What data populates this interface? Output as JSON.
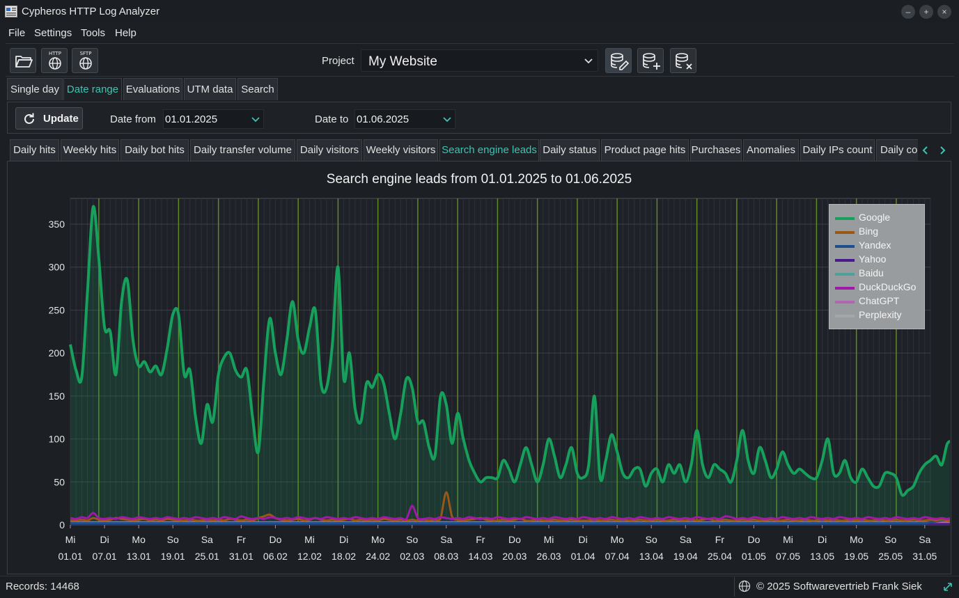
{
  "window": {
    "title": "Cypheros HTTP Log Analyzer",
    "controls": [
      "–",
      "+",
      "×"
    ]
  },
  "menu": [
    "File",
    "Settings",
    "Tools",
    "Help"
  ],
  "toolbar": {
    "open_icon": "folder-open-icon",
    "http_label": "HTTP",
    "sftp_label": "SFTP",
    "project_label": "Project",
    "project_value": "My Website"
  },
  "main_tabs": [
    "Single day",
    "Date range",
    "Evaluations",
    "UTM data",
    "Search"
  ],
  "active_main_tab": "Date range",
  "date_row": {
    "update_label": "Update",
    "from_label": "Date from",
    "from_value": "01.01.2025",
    "to_label": "Date to",
    "to_value": "01.06.2025"
  },
  "chart_tabs": [
    "Daily hits",
    "Weekly hits",
    "Daily bot hits",
    "Daily transfer volume",
    "Daily visitors",
    "Weekly visitors",
    "Search engine leads",
    "Daily status",
    "Product page hits",
    "Purchases",
    "Anomalies",
    "Daily IPs count",
    "Daily co"
  ],
  "active_chart_tab": "Search engine leads",
  "status": {
    "records": "Records: 14468",
    "copyright": "© 2025 Softwarevertrieb Frank Siek"
  },
  "colors": {
    "accent": "#3fc3b0",
    "google": "#16a05c",
    "bing": "#9a5716",
    "yandex": "#1c4f8c",
    "yahoo": "#4a1a8a",
    "baidu": "#4fa098",
    "duckduckgo": "#a01aa8",
    "chatgpt": "#b066b0",
    "perplexity": "#a4a6a8",
    "grid_major": "#5f8a1f"
  },
  "chart_data": {
    "type": "line",
    "title": "Search engine leads from 01.01.2025 to 01.06.2025",
    "xlabel": "",
    "ylabel": "",
    "ylim": [
      0,
      380
    ],
    "yticks": [
      0,
      50,
      100,
      150,
      200,
      250,
      300,
      350
    ],
    "x_tick_days": [
      "Mi",
      "Di",
      "Mo",
      "So",
      "Sa",
      "Fr",
      "Do",
      "Mi",
      "Di",
      "Mo",
      "So",
      "Sa",
      "Fr",
      "Do",
      "Mi",
      "Di",
      "Mo",
      "So",
      "Sa",
      "Fr",
      "Do",
      "Mi",
      "Di",
      "Mo",
      "So",
      "Sa"
    ],
    "x_tick_dates": [
      "01.01",
      "07.01",
      "13.01",
      "19.01",
      "25.01",
      "31.01",
      "06.02",
      "12.02",
      "18.02",
      "24.02",
      "02.03",
      "08.03",
      "14.03",
      "20.03",
      "26.03",
      "01.04",
      "07.04",
      "13.04",
      "19.04",
      "25.04",
      "01.05",
      "07.05",
      "13.05",
      "19.05",
      "25.05",
      "31.05"
    ],
    "x_range_days": [
      0,
      151
    ],
    "legend_position": "top-right",
    "series": [
      {
        "name": "Google",
        "values": [
          210,
          180,
          172,
          270,
          370,
          310,
          230,
          225,
          175,
          260,
          285,
          215,
          185,
          190,
          178,
          185,
          175,
          205,
          245,
          245,
          175,
          180,
          125,
          95,
          140,
          120,
          175,
          195,
          200,
          180,
          172,
          180,
          125,
          85,
          170,
          240,
          200,
          175,
          215,
          260,
          215,
          200,
          230,
          250,
          165,
          160,
          210,
          300,
          170,
          200,
          135,
          120,
          165,
          160,
          175,
          165,
          130,
          100,
          130,
          170,
          160,
          120,
          120,
          90,
          80,
          150,
          140,
          95,
          130,
          100,
          75,
          60,
          50,
          55,
          55,
          55,
          75,
          65,
          50,
          70,
          90,
          70,
          50,
          70,
          100,
          80,
          55,
          70,
          90,
          60,
          55,
          70,
          150,
          55,
          75,
          105,
          85,
          60,
          55,
          65,
          65,
          45,
          60,
          65,
          50,
          70,
          60,
          70,
          50,
          70,
          110,
          70,
          55,
          70,
          65,
          60,
          50,
          75,
          110,
          75,
          60,
          90,
          75,
          55,
          65,
          85,
          70,
          60,
          65,
          60,
          55,
          55,
          75,
          100,
          60,
          60,
          75,
          55,
          50,
          65,
          55,
          45,
          45,
          60,
          60,
          55,
          35,
          40,
          45,
          60,
          70,
          75,
          80,
          70,
          95,
          90,
          45,
          75
        ],
        "note_values_estimated": ""
      },
      {
        "name": "Bing",
        "values": [
          5,
          5,
          6,
          5,
          8,
          6,
          5,
          6,
          8,
          7,
          6,
          5,
          6,
          7,
          5,
          6,
          5,
          7,
          6,
          5,
          5,
          6,
          5,
          5,
          6,
          5,
          6,
          5,
          7,
          6,
          5,
          6,
          5,
          8,
          10,
          12,
          8,
          6,
          5,
          6,
          7,
          5,
          6,
          8,
          6,
          5,
          6,
          5,
          6,
          7,
          5,
          6,
          5,
          6,
          5,
          7,
          6,
          5,
          6,
          5,
          6,
          5,
          6,
          5,
          6,
          8,
          38,
          10,
          6,
          5,
          6,
          7,
          8,
          6,
          5,
          5,
          6,
          5,
          6,
          7,
          5,
          5,
          6,
          5,
          5,
          6,
          5,
          5,
          6,
          5,
          5,
          5,
          6,
          5,
          5,
          6,
          5,
          6,
          5,
          5,
          6,
          5,
          5,
          6,
          5,
          5,
          6,
          5,
          5,
          6,
          5,
          6,
          7,
          5,
          5,
          6,
          5,
          5,
          6,
          5,
          6,
          5,
          5,
          6,
          5,
          5,
          6,
          5,
          5,
          6,
          5,
          5,
          6,
          5,
          6,
          5,
          5,
          6,
          5,
          6,
          5,
          5,
          6,
          5,
          5,
          6,
          5,
          5,
          6,
          5,
          5,
          6,
          5,
          6,
          5,
          6,
          7
        ]
      },
      {
        "name": "Yandex",
        "values": [
          2,
          2,
          2,
          2,
          2,
          2,
          2,
          2,
          2,
          2,
          2,
          2,
          2,
          2,
          2,
          2,
          2,
          2,
          2,
          2,
          2,
          2,
          2,
          2,
          2,
          2,
          2,
          2,
          2,
          2,
          2,
          2,
          2,
          2,
          2,
          2,
          2,
          2,
          2,
          2,
          2,
          2,
          2,
          2,
          2,
          2,
          2,
          2,
          2,
          2,
          2,
          2,
          2,
          2,
          2,
          2,
          2,
          2,
          2,
          2,
          2,
          2,
          2,
          2,
          2,
          2,
          2,
          2,
          2,
          2,
          2,
          2,
          2,
          2,
          2,
          2,
          2,
          2,
          2,
          2,
          2,
          2,
          2,
          2,
          2,
          2,
          2,
          2,
          2,
          2,
          2,
          2,
          2,
          2,
          2,
          2,
          2,
          2,
          2,
          2,
          2,
          2,
          2,
          2,
          2,
          2,
          2,
          2,
          2,
          2,
          2,
          2,
          2,
          2,
          2,
          2,
          2,
          2,
          2,
          2,
          2,
          2,
          2,
          2,
          2,
          2,
          2,
          2,
          2,
          2,
          2,
          2,
          2,
          2,
          2,
          2,
          2,
          2,
          2,
          2,
          2,
          2,
          2,
          2,
          2,
          2,
          2,
          2,
          2,
          2,
          2,
          3,
          4,
          5,
          5,
          4,
          3
        ]
      },
      {
        "name": "Yahoo",
        "values": [
          1,
          1,
          1,
          1,
          1,
          1,
          1,
          1,
          1,
          1,
          1,
          1,
          1,
          1,
          1,
          1,
          1,
          1,
          1,
          1,
          1,
          1,
          1,
          1,
          1,
          1,
          1,
          1,
          1,
          1,
          1,
          1,
          1,
          1,
          1,
          1,
          1,
          1,
          1,
          1,
          1,
          1,
          1,
          1,
          1,
          1,
          1,
          1,
          1,
          1,
          1,
          1,
          1,
          1,
          1,
          1,
          1,
          1,
          1,
          1,
          1,
          1,
          1,
          1,
          1,
          1,
          1,
          1,
          1,
          1,
          1,
          1,
          1,
          1,
          1,
          1,
          1,
          1,
          1,
          1,
          1,
          1,
          1,
          1,
          1,
          1,
          1,
          1,
          1,
          1,
          1,
          1,
          1,
          1,
          1,
          1,
          1,
          1,
          1,
          1,
          1,
          1,
          1,
          1,
          1,
          1,
          1,
          1,
          1,
          1,
          1,
          1,
          1,
          1,
          1,
          1,
          1,
          1,
          1,
          1,
          1,
          1,
          1,
          1,
          1,
          1,
          1,
          1,
          1,
          1,
          1,
          1,
          1,
          1,
          1,
          1,
          1,
          1,
          1,
          1,
          1,
          1,
          1,
          1,
          1,
          1,
          1,
          1,
          1,
          1,
          1,
          1,
          1,
          1,
          1,
          1,
          1
        ]
      },
      {
        "name": "Baidu",
        "values": [
          1,
          1,
          1,
          1,
          1,
          1,
          1,
          1,
          1,
          1,
          1,
          1,
          1,
          1,
          1,
          1,
          1,
          1,
          1,
          1,
          1,
          1,
          1,
          1,
          1,
          1,
          1,
          1,
          1,
          1,
          1,
          1,
          1,
          1,
          1,
          1,
          1,
          1,
          1,
          1,
          1,
          1,
          1,
          1,
          1,
          1,
          1,
          1,
          1,
          1,
          1,
          1,
          1,
          1,
          1,
          1,
          1,
          1,
          1,
          1,
          1,
          1,
          1,
          1,
          1,
          1,
          1,
          1,
          1,
          1,
          1,
          1,
          1,
          1,
          1,
          1,
          1,
          1,
          1,
          1,
          1,
          1,
          1,
          1,
          1,
          1,
          1,
          1,
          1,
          1,
          1,
          1,
          1,
          1,
          1,
          1,
          1,
          1,
          1,
          1,
          1,
          1,
          1,
          1,
          1,
          1,
          1,
          1,
          1,
          1,
          1,
          1,
          1,
          1,
          1,
          1,
          1,
          1,
          1,
          1,
          1,
          1,
          1,
          1,
          1,
          1,
          1,
          1,
          1,
          1,
          1,
          1,
          1,
          1,
          1,
          1,
          1,
          1,
          1,
          1,
          1,
          1,
          1,
          1,
          1,
          1,
          1,
          1,
          1,
          1,
          1,
          1,
          1,
          1,
          1,
          1,
          1
        ]
      },
      {
        "name": "DuckDuckGo",
        "values": [
          8,
          7,
          9,
          8,
          14,
          8,
          7,
          8,
          7,
          9,
          8,
          7,
          9,
          8,
          7,
          8,
          7,
          9,
          8,
          7,
          8,
          7,
          9,
          8,
          7,
          8,
          7,
          9,
          8,
          7,
          10,
          8,
          7,
          8,
          7,
          9,
          8,
          7,
          8,
          7,
          9,
          8,
          7,
          8,
          7,
          9,
          8,
          7,
          8,
          7,
          9,
          8,
          7,
          8,
          7,
          9,
          8,
          7,
          8,
          7,
          22,
          8,
          7,
          8,
          7,
          9,
          8,
          7,
          8,
          7,
          9,
          8,
          7,
          8,
          7,
          9,
          8,
          7,
          8,
          7,
          9,
          8,
          7,
          8,
          7,
          9,
          8,
          7,
          8,
          7,
          9,
          8,
          7,
          8,
          7,
          9,
          8,
          7,
          8,
          7,
          9,
          8,
          7,
          8,
          7,
          9,
          8,
          7,
          8,
          7,
          9,
          8,
          7,
          8,
          7,
          10,
          9,
          7,
          8,
          7,
          9,
          8,
          7,
          8,
          7,
          9,
          8,
          7,
          8,
          7,
          9,
          8,
          7,
          8,
          7,
          9,
          8,
          7,
          8,
          7,
          9,
          8,
          7,
          8,
          7,
          9,
          8,
          7,
          8,
          7,
          9,
          8,
          7,
          8,
          7,
          9,
          8
        ]
      },
      {
        "name": "ChatGPT",
        "values": [
          3,
          3,
          3,
          3,
          3,
          3,
          3,
          3,
          3,
          3,
          3,
          3,
          3,
          3,
          3,
          3,
          3,
          3,
          3,
          3,
          3,
          3,
          3,
          3,
          3,
          3,
          3,
          3,
          3,
          3,
          3,
          3,
          3,
          3,
          3,
          3,
          3,
          3,
          3,
          3,
          3,
          3,
          3,
          3,
          3,
          3,
          3,
          3,
          3,
          3,
          3,
          3,
          3,
          3,
          3,
          3,
          3,
          3,
          3,
          3,
          3,
          3,
          3,
          3,
          3,
          3,
          3,
          3,
          3,
          3,
          3,
          3,
          3,
          3,
          3,
          3,
          3,
          3,
          3,
          3,
          3,
          3,
          3,
          3,
          3,
          3,
          3,
          3,
          3,
          3,
          3,
          3,
          3,
          3,
          3,
          3,
          3,
          3,
          3,
          3,
          3,
          3,
          3,
          3,
          3,
          3,
          3,
          3,
          3,
          3,
          3,
          3,
          3,
          3,
          3,
          3,
          3,
          3,
          3,
          3,
          3,
          3,
          3,
          3,
          3,
          3,
          3,
          3,
          3,
          3,
          3,
          3,
          3,
          3,
          3,
          3,
          3,
          3,
          3,
          3,
          3,
          3,
          3,
          3,
          3,
          3,
          3,
          3,
          3,
          3,
          3,
          3,
          3,
          3,
          3,
          3,
          3
        ]
      },
      {
        "name": "Perplexity",
        "values": [
          1,
          1,
          1,
          1,
          1,
          1,
          1,
          1,
          1,
          1,
          1,
          1,
          1,
          1,
          1,
          1,
          1,
          1,
          1,
          1,
          1,
          1,
          1,
          1,
          1,
          1,
          1,
          1,
          1,
          1,
          1,
          1,
          1,
          1,
          1,
          1,
          1,
          1,
          1,
          1,
          1,
          1,
          1,
          1,
          1,
          1,
          1,
          1,
          1,
          1,
          1,
          1,
          1,
          1,
          1,
          1,
          1,
          1,
          1,
          1,
          1,
          1,
          1,
          1,
          1,
          1,
          1,
          1,
          1,
          1,
          1,
          1,
          1,
          1,
          1,
          1,
          1,
          1,
          1,
          1,
          1,
          1,
          1,
          1,
          1,
          1,
          1,
          1,
          1,
          1,
          1,
          1,
          1,
          1,
          1,
          1,
          1,
          1,
          1,
          1,
          1,
          1,
          1,
          1,
          1,
          1,
          1,
          1,
          1,
          1,
          1,
          1,
          1,
          1,
          1,
          1,
          1,
          1,
          1,
          1,
          1,
          1,
          1,
          1,
          1,
          1,
          1,
          1,
          1,
          1,
          1,
          1,
          1,
          1,
          1,
          1,
          1,
          1,
          1,
          1,
          1,
          1,
          1,
          1,
          1,
          1,
          1,
          1,
          1,
          1,
          1,
          1,
          1,
          1,
          1,
          1,
          1
        ]
      }
    ]
  }
}
